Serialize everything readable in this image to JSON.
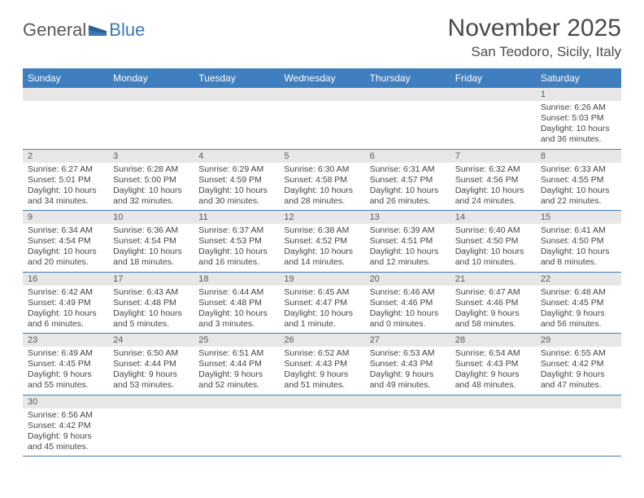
{
  "logo": {
    "general": "General",
    "blue": "Blue"
  },
  "title": "November 2025",
  "location": "San Teodoro, Sicily, Italy",
  "colors": {
    "header_bg": "#3f7fbf",
    "header_fg": "#ffffff",
    "daynum_bg": "#e7e7e7",
    "cell_border": "#3f7fbf",
    "logo_blue": "#3a78b5",
    "text": "#454545"
  },
  "dayHeaders": [
    "Sunday",
    "Monday",
    "Tuesday",
    "Wednesday",
    "Thursday",
    "Friday",
    "Saturday"
  ],
  "weeks": [
    [
      null,
      null,
      null,
      null,
      null,
      null,
      {
        "n": 1,
        "sunrise": "6:26 AM",
        "sunset": "5:03 PM",
        "daylight": "10 hours and 36 minutes."
      }
    ],
    [
      {
        "n": 2,
        "sunrise": "6:27 AM",
        "sunset": "5:01 PM",
        "daylight": "10 hours and 34 minutes."
      },
      {
        "n": 3,
        "sunrise": "6:28 AM",
        "sunset": "5:00 PM",
        "daylight": "10 hours and 32 minutes."
      },
      {
        "n": 4,
        "sunrise": "6:29 AM",
        "sunset": "4:59 PM",
        "daylight": "10 hours and 30 minutes."
      },
      {
        "n": 5,
        "sunrise": "6:30 AM",
        "sunset": "4:58 PM",
        "daylight": "10 hours and 28 minutes."
      },
      {
        "n": 6,
        "sunrise": "6:31 AM",
        "sunset": "4:57 PM",
        "daylight": "10 hours and 26 minutes."
      },
      {
        "n": 7,
        "sunrise": "6:32 AM",
        "sunset": "4:56 PM",
        "daylight": "10 hours and 24 minutes."
      },
      {
        "n": 8,
        "sunrise": "6:33 AM",
        "sunset": "4:55 PM",
        "daylight": "10 hours and 22 minutes."
      }
    ],
    [
      {
        "n": 9,
        "sunrise": "6:34 AM",
        "sunset": "4:54 PM",
        "daylight": "10 hours and 20 minutes."
      },
      {
        "n": 10,
        "sunrise": "6:36 AM",
        "sunset": "4:54 PM",
        "daylight": "10 hours and 18 minutes."
      },
      {
        "n": 11,
        "sunrise": "6:37 AM",
        "sunset": "4:53 PM",
        "daylight": "10 hours and 16 minutes."
      },
      {
        "n": 12,
        "sunrise": "6:38 AM",
        "sunset": "4:52 PM",
        "daylight": "10 hours and 14 minutes."
      },
      {
        "n": 13,
        "sunrise": "6:39 AM",
        "sunset": "4:51 PM",
        "daylight": "10 hours and 12 minutes."
      },
      {
        "n": 14,
        "sunrise": "6:40 AM",
        "sunset": "4:50 PM",
        "daylight": "10 hours and 10 minutes."
      },
      {
        "n": 15,
        "sunrise": "6:41 AM",
        "sunset": "4:50 PM",
        "daylight": "10 hours and 8 minutes."
      }
    ],
    [
      {
        "n": 16,
        "sunrise": "6:42 AM",
        "sunset": "4:49 PM",
        "daylight": "10 hours and 6 minutes."
      },
      {
        "n": 17,
        "sunrise": "6:43 AM",
        "sunset": "4:48 PM",
        "daylight": "10 hours and 5 minutes."
      },
      {
        "n": 18,
        "sunrise": "6:44 AM",
        "sunset": "4:48 PM",
        "daylight": "10 hours and 3 minutes."
      },
      {
        "n": 19,
        "sunrise": "6:45 AM",
        "sunset": "4:47 PM",
        "daylight": "10 hours and 1 minute."
      },
      {
        "n": 20,
        "sunrise": "6:46 AM",
        "sunset": "4:46 PM",
        "daylight": "10 hours and 0 minutes."
      },
      {
        "n": 21,
        "sunrise": "6:47 AM",
        "sunset": "4:46 PM",
        "daylight": "9 hours and 58 minutes."
      },
      {
        "n": 22,
        "sunrise": "6:48 AM",
        "sunset": "4:45 PM",
        "daylight": "9 hours and 56 minutes."
      }
    ],
    [
      {
        "n": 23,
        "sunrise": "6:49 AM",
        "sunset": "4:45 PM",
        "daylight": "9 hours and 55 minutes."
      },
      {
        "n": 24,
        "sunrise": "6:50 AM",
        "sunset": "4:44 PM",
        "daylight": "9 hours and 53 minutes."
      },
      {
        "n": 25,
        "sunrise": "6:51 AM",
        "sunset": "4:44 PM",
        "daylight": "9 hours and 52 minutes."
      },
      {
        "n": 26,
        "sunrise": "6:52 AM",
        "sunset": "4:43 PM",
        "daylight": "9 hours and 51 minutes."
      },
      {
        "n": 27,
        "sunrise": "6:53 AM",
        "sunset": "4:43 PM",
        "daylight": "9 hours and 49 minutes."
      },
      {
        "n": 28,
        "sunrise": "6:54 AM",
        "sunset": "4:43 PM",
        "daylight": "9 hours and 48 minutes."
      },
      {
        "n": 29,
        "sunrise": "6:55 AM",
        "sunset": "4:42 PM",
        "daylight": "9 hours and 47 minutes."
      }
    ],
    [
      {
        "n": 30,
        "sunrise": "6:56 AM",
        "sunset": "4:42 PM",
        "daylight": "9 hours and 45 minutes."
      },
      null,
      null,
      null,
      null,
      null,
      null
    ]
  ],
  "labels": {
    "sunrise": "Sunrise: ",
    "sunset": "Sunset: ",
    "daylight": "Daylight: "
  }
}
